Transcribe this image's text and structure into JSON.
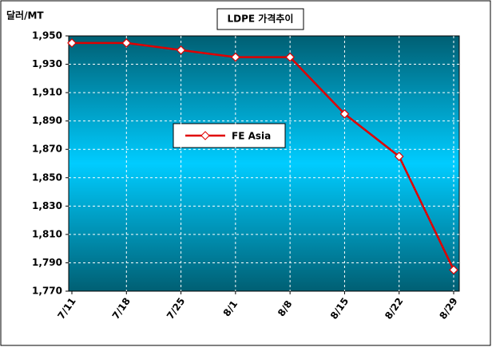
{
  "chart_data": {
    "type": "line",
    "title": "LDPE 가격추이",
    "y_label": "달러/MT",
    "categories": [
      "7/11",
      "7/18",
      "7/25",
      "8/1",
      "8/8",
      "8/15",
      "8/22",
      "8/29"
    ],
    "series": [
      {
        "name": "FE Asia",
        "color": "#e00000",
        "values": [
          1945,
          1945,
          1940,
          1935,
          1935,
          1895,
          1865,
          1785
        ]
      }
    ],
    "ylim": [
      1770,
      1950
    ],
    "yticks": [
      {
        "value": 1770,
        "label": "1,770"
      },
      {
        "value": 1790,
        "label": "1,790"
      },
      {
        "value": 1810,
        "label": "1,810"
      },
      {
        "value": 1830,
        "label": "1,830"
      },
      {
        "value": 1850,
        "label": "1,850"
      },
      {
        "value": 1870,
        "label": "1,870"
      },
      {
        "value": 1890,
        "label": "1,890"
      },
      {
        "value": 1910,
        "label": "1,910"
      },
      {
        "value": 1930,
        "label": "1,930"
      },
      {
        "value": 1950,
        "label": "1,950"
      }
    ],
    "grid": true
  }
}
